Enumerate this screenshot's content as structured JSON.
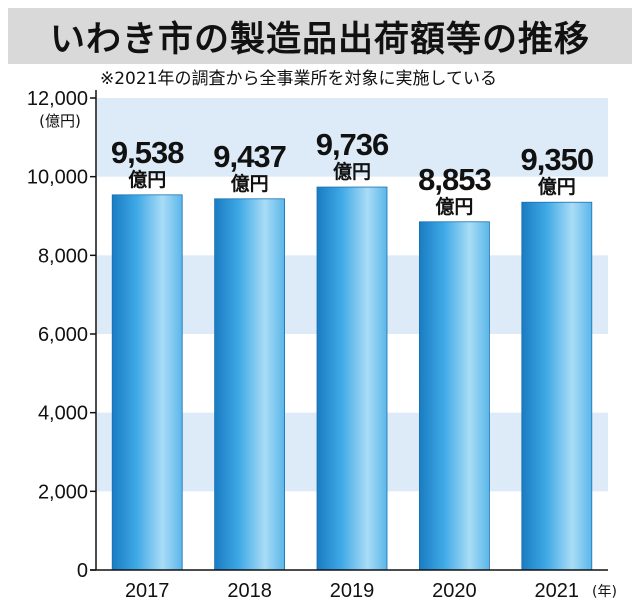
{
  "title": "いわき市の製造品出荷額等の推移",
  "note": "※2021年の調査から全事業所を対象に実施している",
  "colors": {
    "title_band": "#d9d9d9",
    "band": "#dcebf7",
    "bar_light": "#a9dcf6",
    "bar_mid": "#3fa9e6",
    "bar_dark": "#1a7cc2",
    "text": "#111111"
  },
  "chart_data": {
    "type": "bar",
    "categories": [
      "2017",
      "2018",
      "2019",
      "2020",
      "2021"
    ],
    "values": [
      9538,
      9437,
      9736,
      8853,
      9350
    ],
    "value_labels": [
      "9,538",
      "9,437",
      "9,736",
      "8,853",
      "9,350"
    ],
    "value_unit": "億円",
    "ylabel": "(億円)",
    "xunit": "(年)",
    "ylim": [
      0,
      12000
    ],
    "yticks": [
      0,
      2000,
      4000,
      6000,
      8000,
      10000,
      12000
    ],
    "ytick_labels": [
      "0",
      "2,000",
      "4,000",
      "6,000",
      "8,000",
      "10,000",
      "12,000"
    ],
    "grid": "alternating bands",
    "legend": "none"
  }
}
